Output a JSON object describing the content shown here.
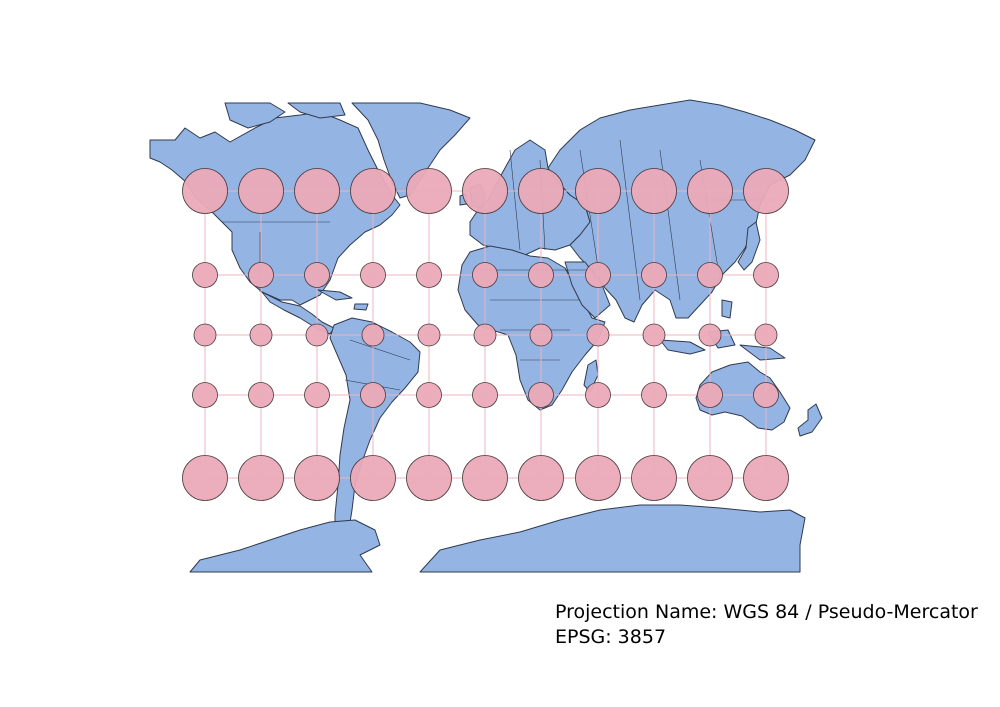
{
  "caption": {
    "projection_line": "Projection Name: WGS 84 / Pseudo-Mercator",
    "epsg_line": "EPSG: 3857"
  },
  "colors": {
    "land": "#94b4e4",
    "outline": "#2f3b4f",
    "circle_fill": "#ebaab8",
    "graticule": "#ecb5c2",
    "background": "#ffffff"
  },
  "map": {
    "projection": "WGS 84 / Pseudo-Mercator",
    "feature": "Tissot indicatrix circles on a lon/lat graticule",
    "circle_rows": 5,
    "circles_per_row": 11
  }
}
